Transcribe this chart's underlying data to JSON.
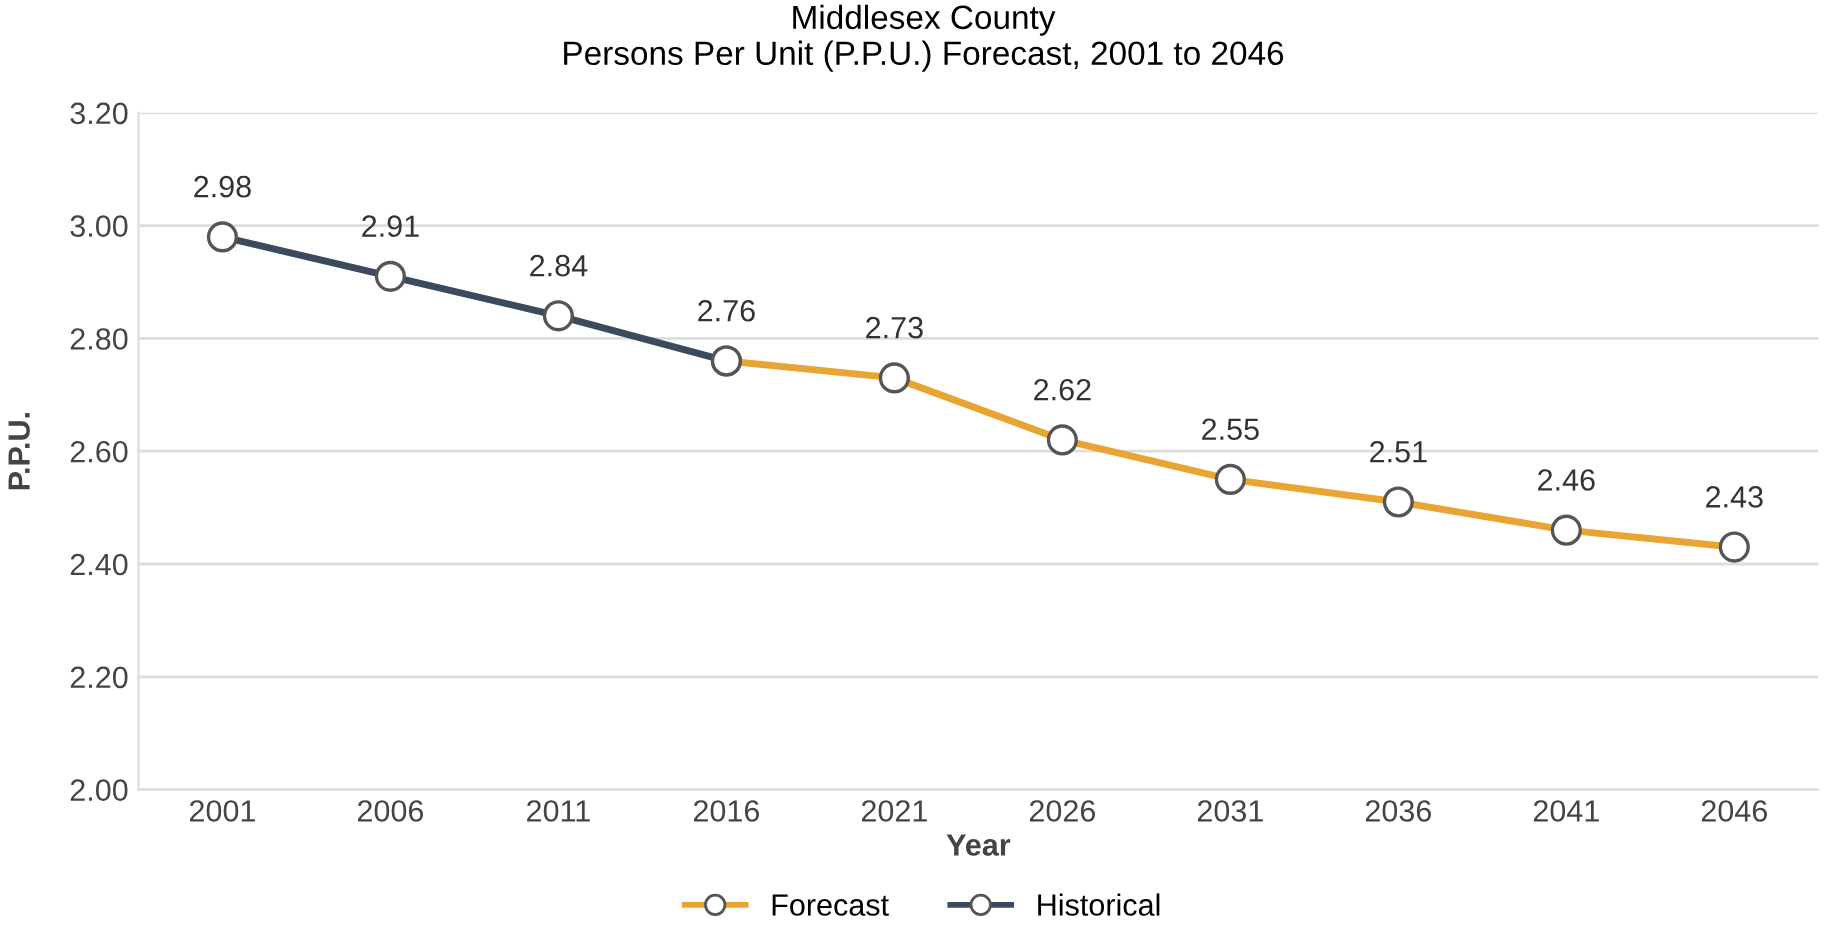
{
  "chart_data": {
    "type": "line",
    "title": "Middlesex County\nPersons Per Unit (P.P.U.) Forecast, 2001 to 2046",
    "xlabel": "Year",
    "ylabel": "P.P.U.",
    "categories": [
      "2001",
      "2006",
      "2011",
      "2016",
      "2021",
      "2026",
      "2031",
      "2036",
      "2041",
      "2046"
    ],
    "series": [
      {
        "name": "Forecast",
        "color": "#e8a534",
        "values": [
          null,
          null,
          null,
          2.76,
          2.73,
          2.62,
          2.55,
          2.51,
          2.46,
          2.43
        ],
        "value_labels": [
          null,
          null,
          null,
          null,
          "2.73",
          "2.62",
          "2.55",
          "2.51",
          "2.46",
          "2.43"
        ]
      },
      {
        "name": "Historical",
        "color": "#3b4a5e",
        "values": [
          2.98,
          2.91,
          2.84,
          2.76,
          null,
          null,
          null,
          null,
          null,
          null
        ],
        "value_labels": [
          "2.98",
          "2.91",
          "2.84",
          "2.76",
          null,
          null,
          null,
          null,
          null,
          null
        ]
      }
    ],
    "ylim": [
      2.0,
      3.2
    ],
    "yticks": [
      {
        "value": 2.0,
        "label": "2.00"
      },
      {
        "value": 2.2,
        "label": "2.20"
      },
      {
        "value": 2.4,
        "label": "2.40"
      },
      {
        "value": 2.6,
        "label": "2.60"
      },
      {
        "value": 2.8,
        "label": "2.80"
      },
      {
        "value": 3.0,
        "label": "3.00"
      },
      {
        "value": 3.2,
        "label": "3.20"
      }
    ],
    "grid": "y",
    "legend": "bottom",
    "marker": "circle",
    "line_style": "solid"
  }
}
